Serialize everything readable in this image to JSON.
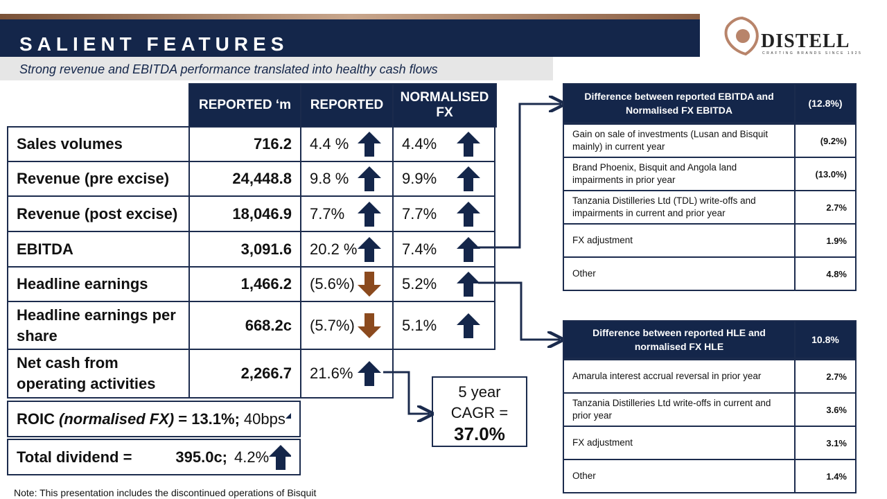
{
  "header": {
    "title": "SALIENT FEATURES",
    "subtitle": "Strong revenue and EBITDA performance translated into healthy cash flows"
  },
  "logo": {
    "name": "DISTELL",
    "tagline": "CRAFTING BRANDS SINCE 1925"
  },
  "main_table": {
    "columns": [
      "REPORTED ‘m",
      "REPORTED",
      "NORMALISED FX"
    ],
    "rows": [
      {
        "label": "Sales volumes",
        "value": "716.2",
        "reported": "4.4 %",
        "reported_trend": "up",
        "normalised": "4.4%",
        "normalised_trend": "up"
      },
      {
        "label": "Revenue (pre excise)",
        "value": "24,448.8",
        "reported": "9.8 %",
        "reported_trend": "up",
        "normalised": "9.9%",
        "normalised_trend": "up"
      },
      {
        "label": "Revenue (post excise)",
        "value": "18,046.9",
        "reported": "7.7%",
        "reported_trend": "up",
        "normalised": "7.7%",
        "normalised_trend": "up"
      },
      {
        "label": "EBITDA",
        "value": "3,091.6",
        "reported": "20.2 %",
        "reported_trend": "up",
        "normalised": "7.4%",
        "normalised_trend": "up"
      },
      {
        "label": "Headline earnings",
        "value": "1,466.2",
        "reported": "(5.6%)",
        "reported_trend": "down",
        "normalised": "5.2%",
        "normalised_trend": "up"
      },
      {
        "label": "Headline earnings per share",
        "value": "668.2c",
        "reported": "(5.7%)",
        "reported_trend": "down",
        "normalised": "5.1%",
        "normalised_trend": "up"
      },
      {
        "label": "Net cash from operating activities",
        "value": "2,266.7",
        "reported": "21.6%",
        "reported_trend": "up"
      }
    ]
  },
  "roic": {
    "label": "ROIC",
    "qualifier": "(normalised FX)",
    "value": "= 13.1%;",
    "change": "40bps",
    "trend": "up"
  },
  "dividend": {
    "label": "Total dividend =",
    "value": "395.0c;",
    "change": "4.2%",
    "trend": "up"
  },
  "cagr": {
    "label": "5 year CAGR =",
    "value": "37.0%"
  },
  "ebitda_table": {
    "title": "Difference between reported EBITDA and Normalised FX EBITDA",
    "total": "(12.8%)",
    "rows": [
      {
        "label": "Gain on sale of investments (Lusan and Bisquit mainly) in current year",
        "value": "(9.2%)"
      },
      {
        "label": "Brand Phoenix, Bisquit and Angola land impairments in prior year",
        "value": "(13.0%)"
      },
      {
        "label": "Tanzania Distilleries Ltd (TDL) write-offs and impairments in current and prior year",
        "value": "2.7%"
      },
      {
        "label": "FX adjustment",
        "value": "1.9%"
      },
      {
        "label": "Other",
        "value": "4.8%"
      }
    ]
  },
  "hle_table": {
    "title": "Difference between reported HLE and normalised FX HLE",
    "total": "10.8%",
    "rows": [
      {
        "label": "Amarula interest accrual reversal in prior year",
        "value": "2.7%"
      },
      {
        "label": "Tanzania Distilleries Ltd write-offs in current and prior year",
        "value": "3.6%"
      },
      {
        "label": "FX adjustment",
        "value": "3.1%"
      },
      {
        "label": "Other",
        "value": "1.4%"
      }
    ]
  },
  "note": "Note: This presentation includes the discontinued operations of Bisquit"
}
